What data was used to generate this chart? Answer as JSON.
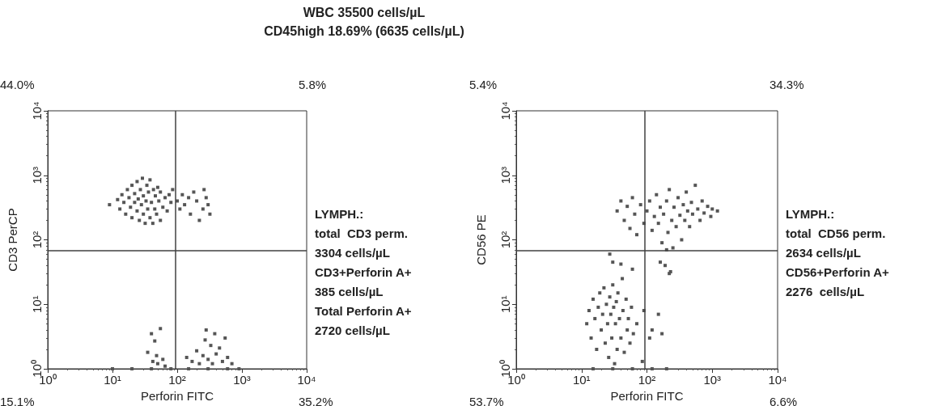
{
  "chart_data": [
    {
      "type": "scatter",
      "title": "WBC 35500 cells/µL",
      "subtitle": "CD45high 18.69% (6635 cells/µL)",
      "xlabel": "Perforin FITC",
      "ylabel": "CD3 PerCP",
      "log": "xy",
      "marker": "square",
      "grid": false,
      "xlim": [
        1,
        10000
      ],
      "ylim": [
        1,
        10000
      ],
      "xticks": [
        {
          "value": 1,
          "label": "10⁰"
        },
        {
          "value": 10,
          "label": "10¹"
        },
        {
          "value": 100,
          "label": "10²"
        },
        {
          "value": 1000,
          "label": "10³"
        },
        {
          "value": 10000,
          "label": "10⁴"
        }
      ],
      "yticks": [
        {
          "value": 1,
          "label": "10⁰"
        },
        {
          "value": 10,
          "label": "10¹"
        },
        {
          "value": 100,
          "label": "10²"
        },
        {
          "value": 1000,
          "label": "10³"
        },
        {
          "value": 10000,
          "label": "10⁴"
        }
      ],
      "ref_lines": [
        {
          "axis": "x",
          "value": 94,
          "color": "#404040"
        },
        {
          "axis": "y",
          "value": 69,
          "color": "#404040"
        }
      ],
      "annotations": [
        "44.0%",
        "5.8%",
        "15.1%",
        "35.2%",
        "LYMPH.:\ntotal  CD3 perm.\n3304 cells/µL\nCD3+Perforin A+\n385 cells/µL\nTotal Perforin A+\n2720 cells/µL"
      ],
      "series": [
        {
          "color": "#555555",
          "x": [
            9,
            12,
            13,
            14,
            15,
            16,
            17,
            18,
            19,
            20,
            20,
            22,
            22,
            24,
            24,
            25,
            26,
            27,
            28,
            29,
            30,
            30,
            32,
            33,
            34,
            35,
            36,
            38,
            38,
            40,
            42,
            43,
            45,
            46,
            48,
            50,
            52,
            55,
            55,
            60,
            65,
            70,
            75,
            80,
            85,
            100,
            110,
            120,
            130,
            150,
            160,
            180,
            200,
            220,
            250,
            260,
            280,
            300,
            320,
            35,
            40,
            42,
            45,
            48,
            50,
            55,
            60,
            65,
            140,
            170,
            200,
            220,
            250,
            270,
            280,
            300,
            330,
            350,
            380,
            400,
            450,
            500,
            550,
            600,
            700,
            10,
            20,
            40,
            80,
            150,
            300,
            600,
            900
          ],
          "values": [
            350,
            420,
            300,
            500,
            380,
            250,
            600,
            450,
            320,
            700,
            220,
            380,
            520,
            280,
            800,
            430,
            200,
            600,
            350,
            900,
            250,
            480,
            180,
            400,
            700,
            300,
            550,
            220,
            850,
            380,
            180,
            600,
            300,
            480,
            250,
            650,
            400,
            200,
            550,
            320,
            450,
            280,
            500,
            380,
            600,
            400,
            300,
            500,
            350,
            450,
            250,
            550,
            400,
            200,
            300,
            600,
            450,
            350,
            250,
            1.8,
            3.5,
            1.3,
            2.7,
            1.6,
            1.2,
            4.2,
            1.4,
            1.1,
            1.5,
            1.3,
            1.9,
            1.2,
            1.6,
            2.8,
            4,
            1.4,
            2.3,
            1.2,
            3.5,
            1.7,
            2.1,
            1.3,
            3,
            1.5,
            1.2,
            1,
            1,
            1,
            1,
            1,
            1,
            1,
            1
          ]
        }
      ]
    },
    {
      "type": "scatter",
      "xlabel": "Perforin FITC",
      "ylabel": "CD56 PE",
      "log": "xy",
      "marker": "square",
      "grid": false,
      "xlim": [
        1,
        10000
      ],
      "ylim": [
        1,
        10000
      ],
      "xticks": [
        {
          "value": 1,
          "label": "10⁰"
        },
        {
          "value": 10,
          "label": "10¹"
        },
        {
          "value": 100,
          "label": "10²"
        },
        {
          "value": 1000,
          "label": "10³"
        },
        {
          "value": 10000,
          "label": "10⁴"
        }
      ],
      "yticks": [
        {
          "value": 1,
          "label": "10⁰"
        },
        {
          "value": 10,
          "label": "10¹"
        },
        {
          "value": 100,
          "label": "10²"
        },
        {
          "value": 1000,
          "label": "10³"
        },
        {
          "value": 10000,
          "label": "10⁴"
        }
      ],
      "ref_lines": [
        {
          "axis": "x",
          "value": 93,
          "color": "#404040"
        },
        {
          "axis": "y",
          "value": 69,
          "color": "#404040"
        }
      ],
      "annotations": [
        "5.4%",
        "34.3%",
        "53.7%",
        "6.6%",
        "LYMPH.:\ntotal  CD56 perm.\n2634 cells/µL\nCD56+Perforin A+\n2276  cells/µL"
      ],
      "series": [
        {
          "color": "#555555",
          "x": [
            12,
            13,
            14,
            15,
            16,
            17,
            18,
            19,
            20,
            21,
            22,
            23,
            24,
            25,
            26,
            27,
            28,
            29,
            30,
            31,
            32,
            33,
            34,
            35,
            36,
            38,
            40,
            42,
            43,
            45,
            48,
            50,
            52,
            55,
            58,
            62,
            70,
            85,
            27,
            30,
            40,
            60,
            90,
            110,
            120,
            150,
            170,
            160,
            190,
            220,
            230,
            35,
            40,
            45,
            50,
            55,
            60,
            65,
            70,
            80,
            90,
            100,
            110,
            120,
            130,
            140,
            150,
            160,
            170,
            180,
            200,
            210,
            220,
            240,
            260,
            280,
            300,
            320,
            340,
            360,
            380,
            400,
            420,
            450,
            480,
            500,
            550,
            600,
            650,
            700,
            750,
            850,
            950,
            1000,
            1200,
            250,
            200,
            15,
            30,
            60,
            120,
            200
          ],
          "values": [
            5,
            8,
            3,
            12,
            6,
            2,
            9,
            15,
            4,
            7,
            18,
            2.5,
            10,
            5,
            1.5,
            13,
            7,
            3,
            20,
            9,
            1.2,
            5,
            11,
            2,
            15,
            6,
            3,
            25,
            8,
            1.8,
            12,
            4,
            6,
            2.5,
            9,
            3.5,
            5,
            1.3,
            60,
            45,
            42,
            35,
            8,
            3,
            4,
            7,
            3.5,
            45,
            40,
            30,
            32,
            280,
            400,
            200,
            330,
            150,
            450,
            250,
            120,
            350,
            180,
            280,
            400,
            140,
            230,
            500,
            180,
            320,
            90,
            250,
            400,
            130,
            600,
            200,
            320,
            160,
            450,
            240,
            100,
            350,
            200,
            550,
            280,
            160,
            380,
            250,
            700,
            300,
            200,
            400,
            260,
            330,
            230,
            300,
            280,
            75,
            70,
            1,
            1,
            1,
            1,
            1
          ]
        }
      ]
    }
  ]
}
